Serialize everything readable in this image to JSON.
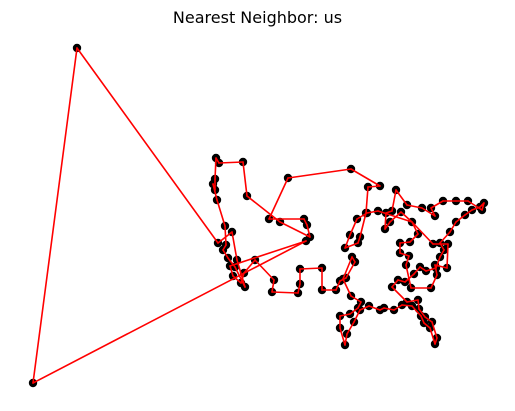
{
  "chart_data": {
    "type": "scatter",
    "title": "Nearest Neighbor: us",
    "xlabel": "",
    "ylabel": "",
    "axes_visible": false,
    "grid": false,
    "point_color": "#000000",
    "line_color": "#ff0000",
    "series": [
      {
        "tour": [
          [
            77,
            48
          ],
          [
            33,
            383
          ],
          [
            306,
            241
          ],
          [
            230,
            266
          ],
          [
            233,
            276
          ],
          [
            241,
            283
          ],
          [
            244,
            273
          ],
          [
            255,
            260
          ],
          [
            274,
            280
          ],
          [
            272,
            292
          ],
          [
            298,
            293
          ],
          [
            300,
            284
          ],
          [
            300,
            269
          ],
          [
            322,
            268
          ],
          [
            322,
            290
          ],
          [
            336,
            290
          ],
          [
            340,
            281
          ],
          [
            346,
            278
          ],
          [
            355,
            262
          ],
          [
            352,
            257
          ],
          [
            343,
            279
          ],
          [
            351,
            296
          ],
          [
            361,
            302
          ],
          [
            358,
            308
          ],
          [
            350,
            314
          ],
          [
            340,
            316
          ],
          [
            340,
            328
          ],
          [
            345,
            345
          ],
          [
            347,
            334
          ],
          [
            354,
            322
          ],
          [
            360,
            310
          ],
          [
            369,
            306
          ],
          [
            380,
            310
          ],
          [
            384,
            308
          ],
          [
            394,
            310
          ],
          [
            402,
            305
          ],
          [
            412,
            306
          ],
          [
            421,
            316
          ],
          [
            424,
            323
          ],
          [
            430,
            328
          ],
          [
            435,
            344
          ],
          [
            437,
            338
          ],
          [
            432,
            322
          ],
          [
            425,
            317
          ],
          [
            419,
            309
          ],
          [
            418,
            300
          ],
          [
            407,
            302
          ],
          [
            392,
            287
          ],
          [
            398,
            280
          ],
          [
            405,
            282
          ],
          [
            414,
            274
          ],
          [
            420,
            267
          ],
          [
            426,
            271
          ],
          [
            436,
            268
          ],
          [
            440,
            257
          ],
          [
            444,
            250
          ],
          [
            440,
            243
          ],
          [
            450,
            232
          ],
          [
            456,
            222
          ],
          [
            465,
            215
          ],
          [
            472,
            210
          ],
          [
            480,
            207
          ],
          [
            484,
            203
          ],
          [
            482,
            210
          ],
          [
            468,
            201
          ],
          [
            456,
            201
          ],
          [
            443,
            201
          ],
          [
            431,
            208
          ],
          [
            435,
            216
          ],
          [
            422,
            208
          ],
          [
            407,
            205
          ],
          [
            396,
            190
          ],
          [
            392,
            211
          ],
          [
            386,
            213
          ],
          [
            385,
            229
          ],
          [
            390,
            222
          ],
          [
            401,
            212
          ],
          [
            412,
            222
          ],
          [
            418,
            234
          ],
          [
            410,
            242
          ],
          [
            400,
            243
          ],
          [
            400,
            253
          ],
          [
            409,
            256
          ],
          [
            406,
            265
          ],
          [
            411,
            288
          ],
          [
            431,
            288
          ],
          [
            437,
            275
          ],
          [
            435,
            265
          ],
          [
            447,
            268
          ],
          [
            448,
            244
          ],
          [
            433,
            244
          ],
          [
            412,
            222
          ],
          [
            378,
            211
          ],
          [
            367,
            213
          ],
          [
            357,
            219
          ],
          [
            350,
            235
          ],
          [
            345,
            248
          ],
          [
            358,
            243
          ],
          [
            360,
            237
          ],
          [
            366,
            213
          ],
          [
            368,
            187
          ],
          [
            380,
            186
          ],
          [
            351,
            169
          ],
          [
            288,
            178
          ],
          [
            269,
            219
          ],
          [
            304,
            219
          ],
          [
            307,
            225
          ],
          [
            310,
            237
          ],
          [
            280,
            222
          ],
          [
            247,
            196
          ],
          [
            243,
            162
          ],
          [
            219,
            163
          ],
          [
            216,
            158
          ],
          [
            215,
            179
          ],
          [
            215,
            190
          ],
          [
            213,
            184
          ],
          [
            217,
            200
          ],
          [
            225,
            226
          ],
          [
            226,
            245
          ],
          [
            223,
            250
          ],
          [
            228,
            258
          ],
          [
            235,
            267
          ],
          [
            245,
            287
          ],
          [
            237,
            260
          ],
          [
            232,
            232
          ],
          [
            218,
            243
          ],
          [
            77,
            48
          ]
        ]
      }
    ]
  }
}
